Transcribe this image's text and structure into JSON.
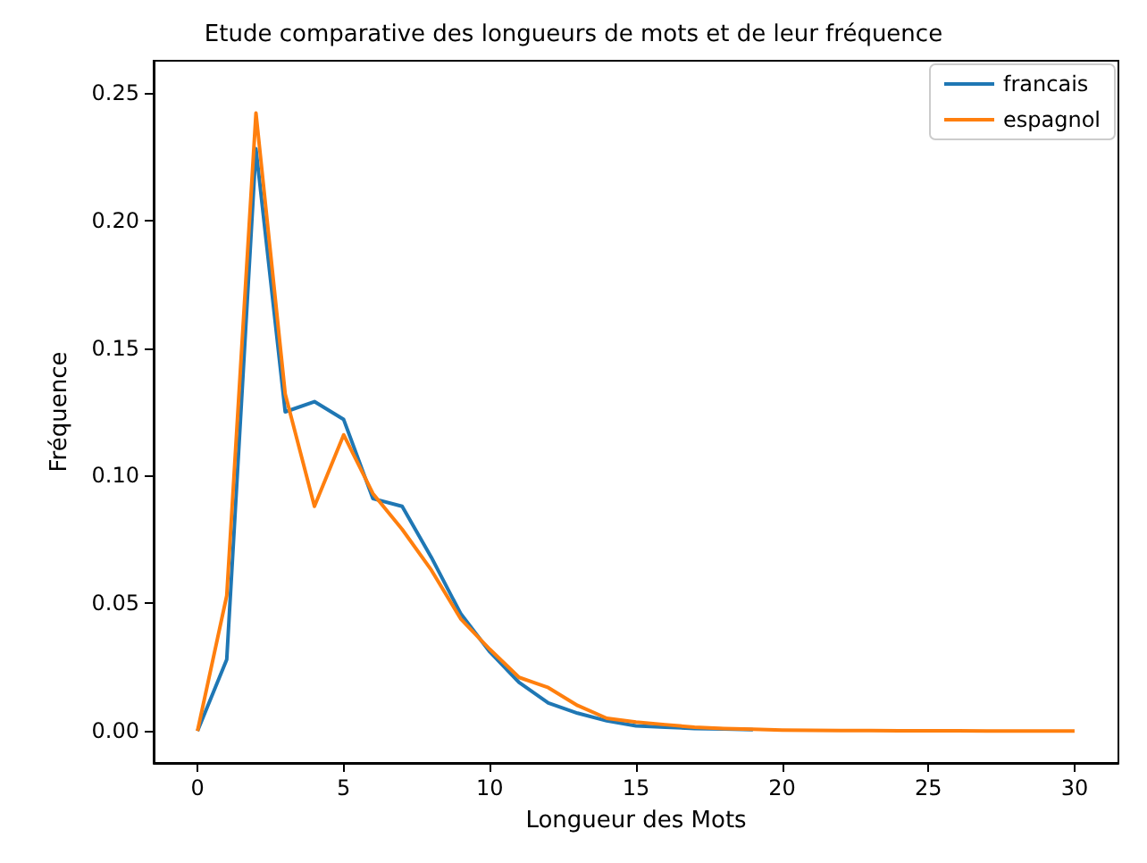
{
  "chart_data": {
    "type": "line",
    "title": "Etude comparative des longueurs de mots et de leur fréquence",
    "xlabel": "Longueur des Mots",
    "ylabel": "Fréquence",
    "x": [
      0,
      1,
      2,
      3,
      4,
      5,
      6,
      7,
      8,
      9,
      10,
      11,
      12,
      13,
      14,
      15,
      16,
      17,
      18,
      19,
      20,
      21,
      22,
      23,
      24,
      25,
      26,
      27,
      28,
      29,
      30
    ],
    "series": [
      {
        "name": "francais",
        "color": "#1f77b4",
        "values": [
          0,
          0.028,
          0.228,
          0.125,
          0.129,
          0.122,
          0.091,
          0.088,
          0.068,
          0.046,
          0.031,
          0.019,
          0.011,
          0.007,
          0.004,
          0.002,
          0.0015,
          0.001,
          0.0008,
          0.0005,
          null,
          null,
          null,
          null,
          null,
          null,
          null,
          null,
          null,
          null,
          null
        ]
      },
      {
        "name": "espagnol",
        "color": "#ff7f0e",
        "values": [
          0,
          0.053,
          0.242,
          0.132,
          0.088,
          0.116,
          0.093,
          0.079,
          0.063,
          0.044,
          0.032,
          0.021,
          0.017,
          0.01,
          0.005,
          0.0035,
          0.0025,
          0.0015,
          0.001,
          0.0007,
          0.0004,
          0.0003,
          0.0002,
          0.0002,
          0.0001,
          0.0001,
          0.0001,
          0,
          0,
          0,
          0
        ]
      }
    ],
    "xlim": [
      -1.5,
      31.5
    ],
    "xticks": [
      0,
      5,
      10,
      15,
      20,
      25,
      30
    ],
    "ylim": [
      -0.0125,
      0.2625
    ],
    "yticks": [
      {
        "value": 0,
        "label": "0.00"
      },
      {
        "value": 0.05,
        "label": "0.05"
      },
      {
        "value": 0.1,
        "label": "0.10"
      },
      {
        "value": 0.15,
        "label": "0.15"
      },
      {
        "value": 0.2,
        "label": "0.20"
      },
      {
        "value": 0.25,
        "label": "0.25"
      }
    ],
    "grid": false,
    "legend": "top right",
    "marker": "none",
    "line_style": "solid"
  }
}
